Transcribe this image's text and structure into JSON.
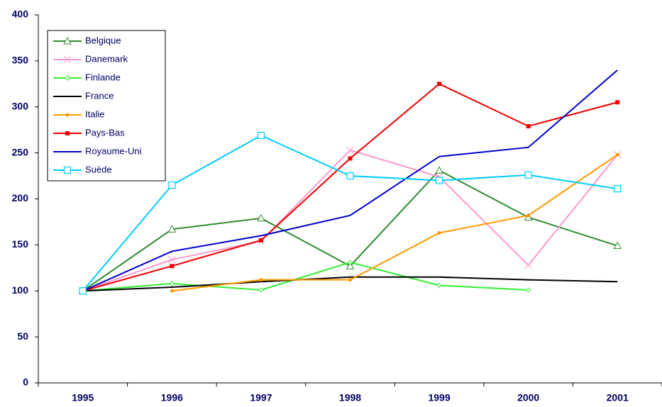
{
  "chart_data": {
    "type": "line",
    "categories": [
      "1995",
      "1996",
      "1997",
      "1998",
      "1999",
      "2000",
      "2001"
    ],
    "ylim": [
      0,
      400
    ],
    "yticks": [
      0,
      50,
      100,
      150,
      200,
      250,
      300,
      350,
      400
    ],
    "grid": false,
    "legend": "upper-left",
    "series": [
      {
        "name": "Belgique",
        "color": "#2e8b2e",
        "marker": "triangle",
        "values": [
          100,
          167,
          179,
          127,
          231,
          180,
          149
        ]
      },
      {
        "name": "Danemark",
        "color": "#ff99cc",
        "marker": "cross",
        "values": [
          100,
          134,
          154,
          253,
          224,
          128,
          248
        ]
      },
      {
        "name": "Finlande",
        "color": "#33ee33",
        "marker": "diamond",
        "values": [
          100,
          108,
          101,
          131,
          106,
          101,
          null
        ]
      },
      {
        "name": "France",
        "color": "#000000",
        "marker": "none",
        "values": [
          100,
          104,
          110,
          115,
          115,
          112,
          110
        ]
      },
      {
        "name": "Italie",
        "color": "#ff9900",
        "marker": "dot",
        "values": [
          null,
          100,
          112,
          112,
          163,
          182,
          248
        ]
      },
      {
        "name": "Pays-Bas",
        "color": "#ee0000",
        "marker": "square",
        "values": [
          100,
          127,
          155,
          244,
          325,
          279,
          305
        ]
      },
      {
        "name": "Royaume-Uni",
        "color": "#0000cc",
        "marker": "none",
        "values": [
          100,
          143,
          160,
          182,
          246,
          256,
          340
        ]
      },
      {
        "name": "Suède",
        "color": "#00ccff",
        "marker": "open-square",
        "values": [
          100,
          215,
          269,
          225,
          220,
          226,
          211
        ]
      }
    ]
  }
}
